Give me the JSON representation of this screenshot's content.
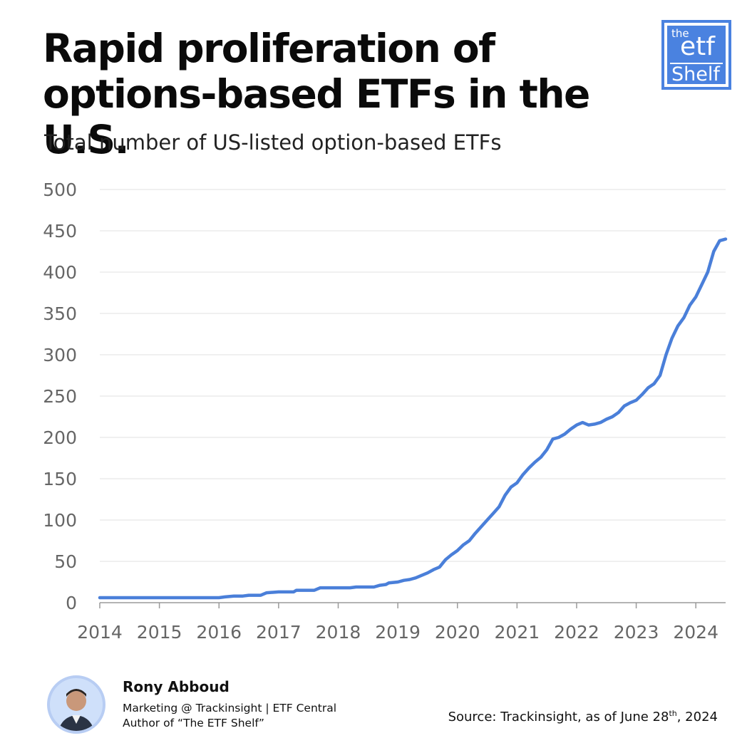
{
  "header": {
    "title_line1": "Rapid proliferation of",
    "title_line2": "options-based ETFs in the U.S.",
    "subtitle": "Total number of US-listed option-based ETFs"
  },
  "logo": {
    "top": "the",
    "middle": "etf",
    "bottom": "Shelf",
    "color": "#4a82e0"
  },
  "author": {
    "name": "Rony Abboud",
    "role": "Marketing @ Trackinsight | ETF Central",
    "book": "Author of “The ETF Shelf”"
  },
  "source": {
    "prefix": "Source: Trackinsight, as of June 28",
    "superscript": "th",
    "suffix": ", 2024"
  },
  "chart_data": {
    "type": "line",
    "title": "",
    "xlabel": "",
    "ylabel": "",
    "xlim": [
      2014,
      2024.5
    ],
    "ylim": [
      0,
      500
    ],
    "yticks": [
      0,
      50,
      100,
      150,
      200,
      250,
      300,
      350,
      400,
      450,
      500
    ],
    "xticks": [
      2014,
      2015,
      2016,
      2017,
      2018,
      2019,
      2020,
      2021,
      2022,
      2023,
      2024
    ],
    "grid": true,
    "line_color": "#4a7fd9",
    "series": [
      {
        "x": [
          2014,
          2015,
          2016,
          2016.1,
          2016.25,
          2016.4,
          2016.5,
          2016.7,
          2016.8,
          2017,
          2017.25,
          2017.3,
          2017.5,
          2017.6,
          2017.7,
          2018,
          2018.2,
          2018.3,
          2018.5,
          2018.6,
          2018.7,
          2018.8,
          2018.85,
          2019,
          2019.1,
          2019.2,
          2019.3,
          2019.4,
          2019.5,
          2019.6,
          2019.7,
          2019.8,
          2019.9,
          2020,
          2020.1,
          2020.2,
          2020.3,
          2020.4,
          2020.5,
          2020.6,
          2020.7,
          2020.8,
          2020.9,
          2021,
          2021.1,
          2021.2,
          2021.3,
          2021.4,
          2021.5,
          2021.6,
          2021.7,
          2021.8,
          2021.9,
          2022,
          2022.1,
          2022.2,
          2022.3,
          2022.4,
          2022.5,
          2022.6,
          2022.7,
          2022.8,
          2022.9,
          2023,
          2023.1,
          2023.2,
          2023.3,
          2023.4,
          2023.5,
          2023.6,
          2023.7,
          2023.8,
          2023.9,
          2024,
          2024.1,
          2024.2,
          2024.3,
          2024.4,
          2024.5
        ],
        "y": [
          6,
          6,
          6,
          7,
          8,
          8,
          9,
          9,
          12,
          13,
          13,
          15,
          15,
          15,
          18,
          18,
          18,
          19,
          19,
          19,
          21,
          22,
          24,
          25,
          27,
          28,
          30,
          33,
          36,
          40,
          43,
          52,
          58,
          63,
          70,
          75,
          84,
          92,
          100,
          108,
          116,
          130,
          140,
          145,
          155,
          163,
          170,
          176,
          185,
          198,
          200,
          204,
          210,
          215,
          218,
          215,
          216,
          218,
          222,
          225,
          230,
          238,
          242,
          245,
          252,
          260,
          265,
          275,
          300,
          320,
          335,
          345,
          360,
          370,
          385,
          400,
          425,
          438,
          440
        ]
      }
    ]
  }
}
